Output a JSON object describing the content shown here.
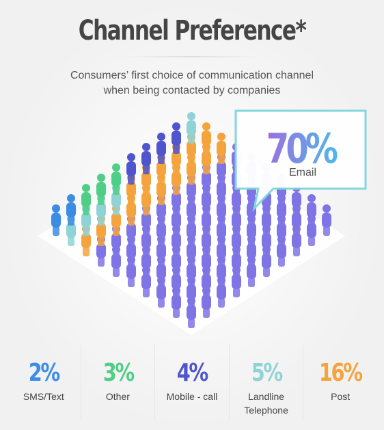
{
  "chart_data": {
    "type": "pictogram",
    "title": "Channel Preference*",
    "subtitle": "Consumers’ first choice of communication channel when being contacted by companies",
    "categories": [
      "Email",
      "Post",
      "Landline Telephone",
      "Mobile - call",
      "Other",
      "SMS/Text"
    ],
    "values": [
      70,
      16,
      5,
      4,
      3,
      2
    ],
    "value_labels": [
      "70%",
      "16%",
      "5%",
      "4%",
      "3%",
      "2%"
    ],
    "colors": [
      "#7f74e6",
      "#f5a33c",
      "#8fd3d6",
      "#4f55cc",
      "#4fcf86",
      "#3b8de4"
    ]
  }
}
